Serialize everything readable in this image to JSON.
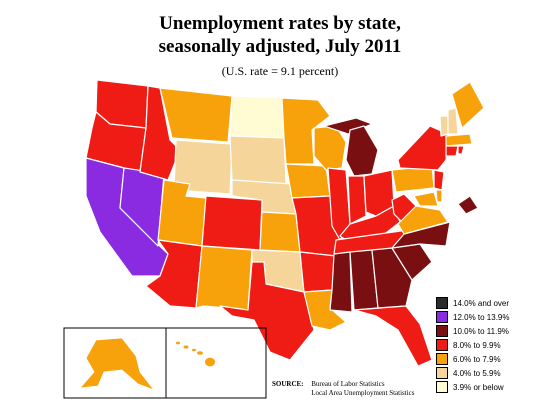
{
  "title": {
    "line1": "Unemployment rates by state,",
    "line2": "seasonally adjusted, July 2011"
  },
  "subtitle": "(U.S. rate = 9.1 percent)",
  "legend": [
    {
      "label": "14.0% and over",
      "color": "#2b2b2b"
    },
    {
      "label": "12.0% to 13.9%",
      "color": "#8a2be2"
    },
    {
      "label": "10.0% to 11.9%",
      "color": "#7a0f12"
    },
    {
      "label": "8.0% to 9.9%",
      "color": "#ee1c14"
    },
    {
      "label": "6.0% to 7.9%",
      "color": "#f7a20a"
    },
    {
      "label": "4.0% to 5.9%",
      "color": "#f6d59a"
    },
    {
      "label": "3.9% or below",
      "color": "#fffbd2"
    }
  ],
  "source": {
    "label": "SOURCE:",
    "line1": "Bureau of Labor Statistics",
    "line2": "Local Area Unemployment Statistics"
  }
}
